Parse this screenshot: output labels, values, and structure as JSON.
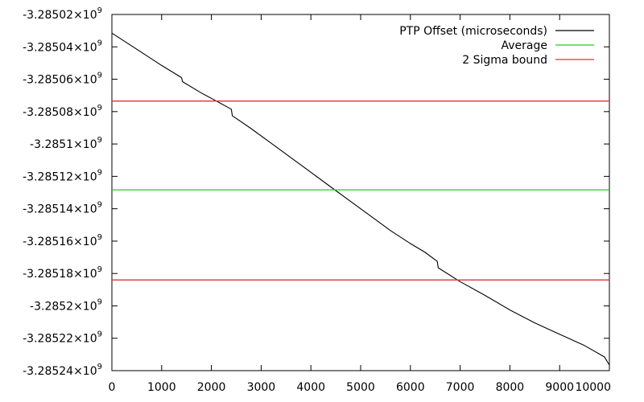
{
  "chart_data": {
    "type": "line",
    "title": "",
    "xlabel": "",
    "ylabel": "",
    "xlim": [
      0,
      10000
    ],
    "ylim": [
      -3285240000.0,
      -3285020000.0
    ],
    "x_ticks": [
      0,
      1000,
      2000,
      3000,
      4000,
      5000,
      6000,
      7000,
      8000,
      9000,
      10000
    ],
    "y_ticks": [
      {
        "value": -3285020000.0,
        "mantissa": "-3.28502×10",
        "exp": "9"
      },
      {
        "value": -3285040000.0,
        "mantissa": "-3.28504×10",
        "exp": "9"
      },
      {
        "value": -3285060000.0,
        "mantissa": "-3.28506×10",
        "exp": "9"
      },
      {
        "value": -3285080000.0,
        "mantissa": "-3.28508×10",
        "exp": "9"
      },
      {
        "value": -3285100000.0,
        "mantissa": "-3.2851×10",
        "exp": "9"
      },
      {
        "value": -3285120000.0,
        "mantissa": "-3.28512×10",
        "exp": "9"
      },
      {
        "value": -3285140000.0,
        "mantissa": "-3.28514×10",
        "exp": "9"
      },
      {
        "value": -3285160000.0,
        "mantissa": "-3.28516×10",
        "exp": "9"
      },
      {
        "value": -3285180000.0,
        "mantissa": "-3.28518×10",
        "exp": "9"
      },
      {
        "value": -3285200000.0,
        "mantissa": "-3.2852×10",
        "exp": "9"
      },
      {
        "value": -3285220000.0,
        "mantissa": "-3.28522×10",
        "exp": "9"
      },
      {
        "value": -3285240000.0,
        "mantissa": "-3.28524×10",
        "exp": "9"
      }
    ],
    "legend_position": "top-right",
    "series": [
      {
        "name": "PTP Offset (microseconds)",
        "color": "#000000",
        "points": [
          [
            0,
            -3285031500.0
          ],
          [
            300,
            -3285037500.0
          ],
          [
            700,
            -3285045500.0
          ],
          [
            1000,
            -3285051500.0
          ],
          [
            1400,
            -3285059000.0
          ],
          [
            1420,
            -3285061500.0
          ],
          [
            1800,
            -3285068500.0
          ],
          [
            2100,
            -3285073500.0
          ],
          [
            2400,
            -3285078500.0
          ],
          [
            2420,
            -3285082500.0
          ],
          [
            2800,
            -3285090500.0
          ],
          [
            3200,
            -3285099500.0
          ],
          [
            3600,
            -3285108500.0
          ],
          [
            4000,
            -3285117500.0
          ],
          [
            4400,
            -3285126500.0
          ],
          [
            4800,
            -3285135500.0
          ],
          [
            5200,
            -3285144500.0
          ],
          [
            5600,
            -3285153500.0
          ],
          [
            6000,
            -3285161500.0
          ],
          [
            6300,
            -3285167000.0
          ],
          [
            6540,
            -3285172500.0
          ],
          [
            6560,
            -3285176500.0
          ],
          [
            7000,
            -3285185000.0
          ],
          [
            7500,
            -3285193500.0
          ],
          [
            8000,
            -3285202500.0
          ],
          [
            8500,
            -3285210500.0
          ],
          [
            9000,
            -3285217500.0
          ],
          [
            9500,
            -3285224500.0
          ],
          [
            9900,
            -3285231500.0
          ],
          [
            10000,
            -3285236500.0
          ]
        ]
      },
      {
        "name": "Average",
        "color": "#22cc22",
        "points": [
          [
            0,
            -3285128300.0
          ],
          [
            10000,
            -3285128300.0
          ]
        ]
      },
      {
        "name": "2 Sigma bound",
        "color": "#e03030",
        "points": [
          [
            0,
            -3285073500.0
          ],
          [
            10000,
            -3285073500.0
          ]
        ]
      },
      {
        "name": "",
        "color": "#e03030",
        "points": [
          [
            0,
            -3285184000.0
          ],
          [
            10000,
            -3285184000.0
          ]
        ]
      }
    ]
  }
}
